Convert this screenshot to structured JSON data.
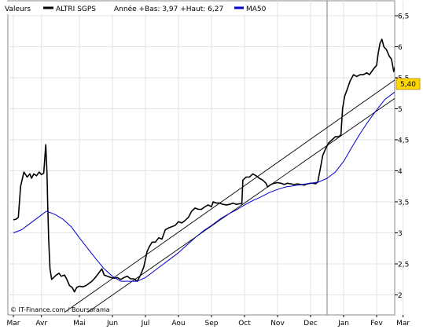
{
  "chart_data": {
    "type": "line",
    "legend": {
      "label_values": "Valeurs",
      "series_name": "ALTRI SGPS",
      "stats": "Année +Bas: 3,97 +Haut: 6,27",
      "ma_name": "MA50",
      "placement": "top-left"
    },
    "credit": "© IT-Finance.com / Boursorama",
    "last_value_label": "5,40",
    "last_value": 5.4,
    "ylim": [
      1.7,
      6.6
    ],
    "y_ticks": [
      {
        "v": 2,
        "label": "2"
      },
      {
        "v": 2.5,
        "label": "2,5"
      },
      {
        "v": 3,
        "label": "3"
      },
      {
        "v": 3.5,
        "label": "3,5"
      },
      {
        "v": 4,
        "label": "4"
      },
      {
        "v": 4.5,
        "label": "4,5"
      },
      {
        "v": 5,
        "label": "5"
      },
      {
        "v": 5.5,
        "label": "5,5"
      },
      {
        "v": 6,
        "label": "6"
      },
      {
        "v": 6.5,
        "label": "6,5"
      }
    ],
    "x_domain": [
      0,
      13.0
    ],
    "x_ticks": [
      {
        "t": 0.0,
        "label": "Mar"
      },
      {
        "t": 0.85,
        "label": "Avr"
      },
      {
        "t": 2.0,
        "label": "Mai"
      },
      {
        "t": 3.0,
        "label": "Jun"
      },
      {
        "t": 4.0,
        "label": "Jul"
      },
      {
        "t": 5.0,
        "label": "Aou"
      },
      {
        "t": 6.0,
        "label": "Sep"
      },
      {
        "t": 7.0,
        "label": "Oct"
      },
      {
        "t": 8.0,
        "label": "Nov"
      },
      {
        "t": 9.0,
        "label": "Dec"
      },
      {
        "t": 10.0,
        "label": "Jan"
      },
      {
        "t": 11.0,
        "label": "Fev"
      },
      {
        "t": 11.8,
        "label": "Mar"
      }
    ],
    "year_divider_t": 9.5,
    "series": [
      {
        "name": "ALTRI SGPS",
        "color": "#000000",
        "points": [
          [
            0.0,
            3.21
          ],
          [
            0.08,
            3.22
          ],
          [
            0.15,
            3.25
          ],
          [
            0.22,
            3.75
          ],
          [
            0.32,
            3.98
          ],
          [
            0.42,
            3.9
          ],
          [
            0.5,
            3.95
          ],
          [
            0.55,
            3.88
          ],
          [
            0.62,
            3.95
          ],
          [
            0.7,
            3.92
          ],
          [
            0.78,
            3.98
          ],
          [
            0.85,
            3.94
          ],
          [
            0.92,
            3.96
          ],
          [
            0.98,
            4.42
          ],
          [
            1.02,
            3.95
          ],
          [
            1.04,
            3.45
          ],
          [
            1.07,
            2.9
          ],
          [
            1.11,
            2.42
          ],
          [
            1.16,
            2.25
          ],
          [
            1.22,
            2.28
          ],
          [
            1.3,
            2.32
          ],
          [
            1.38,
            2.35
          ],
          [
            1.45,
            2.3
          ],
          [
            1.55,
            2.32
          ],
          [
            1.62,
            2.25
          ],
          [
            1.7,
            2.15
          ],
          [
            1.78,
            2.12
          ],
          [
            1.85,
            2.05
          ],
          [
            1.92,
            2.12
          ],
          [
            2.0,
            2.14
          ],
          [
            2.1,
            2.13
          ],
          [
            2.2,
            2.15
          ],
          [
            2.3,
            2.19
          ],
          [
            2.38,
            2.22
          ],
          [
            2.48,
            2.28
          ],
          [
            2.58,
            2.35
          ],
          [
            2.68,
            2.42
          ],
          [
            2.75,
            2.32
          ],
          [
            2.85,
            2.3
          ],
          [
            2.95,
            2.28
          ],
          [
            3.05,
            2.27
          ],
          [
            3.15,
            2.28
          ],
          [
            3.25,
            2.25
          ],
          [
            3.35,
            2.28
          ],
          [
            3.45,
            2.3
          ],
          [
            3.55,
            2.26
          ],
          [
            3.65,
            2.26
          ],
          [
            3.75,
            2.22
          ],
          [
            3.85,
            2.32
          ],
          [
            3.95,
            2.45
          ],
          [
            4.05,
            2.7
          ],
          [
            4.12,
            2.78
          ],
          [
            4.2,
            2.85
          ],
          [
            4.3,
            2.85
          ],
          [
            4.4,
            2.92
          ],
          [
            4.5,
            2.9
          ],
          [
            4.6,
            3.05
          ],
          [
            4.7,
            3.08
          ],
          [
            4.8,
            3.1
          ],
          [
            4.9,
            3.12
          ],
          [
            5.0,
            3.18
          ],
          [
            5.1,
            3.16
          ],
          [
            5.2,
            3.2
          ],
          [
            5.3,
            3.25
          ],
          [
            5.4,
            3.35
          ],
          [
            5.5,
            3.4
          ],
          [
            5.6,
            3.38
          ],
          [
            5.7,
            3.38
          ],
          [
            5.8,
            3.42
          ],
          [
            5.9,
            3.45
          ],
          [
            6.0,
            3.42
          ],
          [
            6.05,
            3.5
          ],
          [
            6.15,
            3.48
          ],
          [
            6.25,
            3.48
          ],
          [
            6.35,
            3.46
          ],
          [
            6.45,
            3.45
          ],
          [
            6.55,
            3.46
          ],
          [
            6.65,
            3.48
          ],
          [
            6.75,
            3.46
          ],
          [
            6.85,
            3.47
          ],
          [
            6.92,
            3.47
          ],
          [
            6.95,
            3.85
          ],
          [
            7.05,
            3.9
          ],
          [
            7.15,
            3.9
          ],
          [
            7.25,
            3.95
          ],
          [
            7.35,
            3.92
          ],
          [
            7.45,
            3.88
          ],
          [
            7.55,
            3.85
          ],
          [
            7.65,
            3.8
          ],
          [
            7.7,
            3.74
          ],
          [
            7.8,
            3.78
          ],
          [
            7.9,
            3.8
          ],
          [
            8.0,
            3.81
          ],
          [
            8.1,
            3.8
          ],
          [
            8.2,
            3.78
          ],
          [
            8.3,
            3.8
          ],
          [
            8.4,
            3.79
          ],
          [
            8.5,
            3.78
          ],
          [
            8.6,
            3.79
          ],
          [
            8.7,
            3.78
          ],
          [
            8.8,
            3.77
          ],
          [
            8.9,
            3.79
          ],
          [
            9.0,
            3.8
          ],
          [
            9.08,
            3.8
          ],
          [
            9.15,
            3.79
          ],
          [
            9.22,
            3.82
          ],
          [
            9.3,
            4.05
          ],
          [
            9.37,
            4.25
          ],
          [
            9.45,
            4.35
          ],
          [
            9.55,
            4.45
          ],
          [
            9.65,
            4.5
          ],
          [
            9.75,
            4.55
          ],
          [
            9.85,
            4.55
          ],
          [
            9.92,
            4.58
          ],
          [
            9.97,
            5.0
          ],
          [
            10.03,
            5.2
          ],
          [
            10.1,
            5.3
          ],
          [
            10.2,
            5.45
          ],
          [
            10.3,
            5.55
          ],
          [
            10.4,
            5.52
          ],
          [
            10.5,
            5.55
          ],
          [
            10.6,
            5.55
          ],
          [
            10.7,
            5.58
          ],
          [
            10.78,
            5.55
          ],
          [
            10.85,
            5.6
          ],
          [
            10.92,
            5.65
          ],
          [
            11.0,
            5.7
          ],
          [
            11.05,
            5.9
          ],
          [
            11.1,
            6.05
          ],
          [
            11.16,
            6.12
          ],
          [
            11.22,
            6.0
          ],
          [
            11.3,
            5.95
          ],
          [
            11.38,
            5.85
          ],
          [
            11.45,
            5.8
          ],
          [
            11.52,
            5.6
          ],
          [
            11.58,
            5.72
          ],
          [
            11.65,
            5.78
          ],
          [
            11.72,
            5.7
          ],
          [
            11.78,
            5.68
          ],
          [
            11.85,
            5.55
          ],
          [
            11.9,
            5.4
          ],
          [
            11.95,
            5.45
          ],
          [
            12.0,
            5.4
          ]
        ]
      },
      {
        "name": "MA50",
        "color": "#0000cc",
        "points": [
          [
            0.0,
            3.0
          ],
          [
            0.25,
            3.05
          ],
          [
            0.5,
            3.15
          ],
          [
            0.75,
            3.25
          ],
          [
            1.0,
            3.35
          ],
          [
            1.25,
            3.3
          ],
          [
            1.5,
            3.22
          ],
          [
            1.75,
            3.1
          ],
          [
            2.0,
            2.92
          ],
          [
            2.25,
            2.75
          ],
          [
            2.5,
            2.58
          ],
          [
            2.75,
            2.42
          ],
          [
            3.0,
            2.3
          ],
          [
            3.25,
            2.22
          ],
          [
            3.5,
            2.22
          ],
          [
            3.75,
            2.22
          ],
          [
            4.0,
            2.28
          ],
          [
            4.25,
            2.38
          ],
          [
            4.5,
            2.48
          ],
          [
            4.75,
            2.58
          ],
          [
            5.0,
            2.68
          ],
          [
            5.25,
            2.8
          ],
          [
            5.5,
            2.92
          ],
          [
            5.75,
            3.03
          ],
          [
            6.0,
            3.12
          ],
          [
            6.25,
            3.22
          ],
          [
            6.5,
            3.3
          ],
          [
            6.75,
            3.37
          ],
          [
            7.0,
            3.45
          ],
          [
            7.25,
            3.52
          ],
          [
            7.5,
            3.58
          ],
          [
            7.75,
            3.65
          ],
          [
            8.0,
            3.7
          ],
          [
            8.25,
            3.74
          ],
          [
            8.5,
            3.76
          ],
          [
            8.75,
            3.78
          ],
          [
            9.0,
            3.8
          ],
          [
            9.25,
            3.82
          ],
          [
            9.5,
            3.88
          ],
          [
            9.75,
            3.98
          ],
          [
            10.0,
            4.15
          ],
          [
            10.25,
            4.38
          ],
          [
            10.5,
            4.6
          ],
          [
            10.75,
            4.8
          ],
          [
            11.0,
            4.98
          ],
          [
            11.25,
            5.15
          ],
          [
            11.5,
            5.25
          ],
          [
            11.75,
            5.35
          ],
          [
            12.0,
            5.4
          ]
        ]
      }
    ],
    "trendlines": [
      {
        "from": [
          1.55,
          1.72
        ],
        "to": [
          12.5,
          5.82
        ]
      },
      {
        "from": [
          2.25,
          1.72
        ],
        "to": [
          12.5,
          5.52
        ]
      }
    ]
  }
}
